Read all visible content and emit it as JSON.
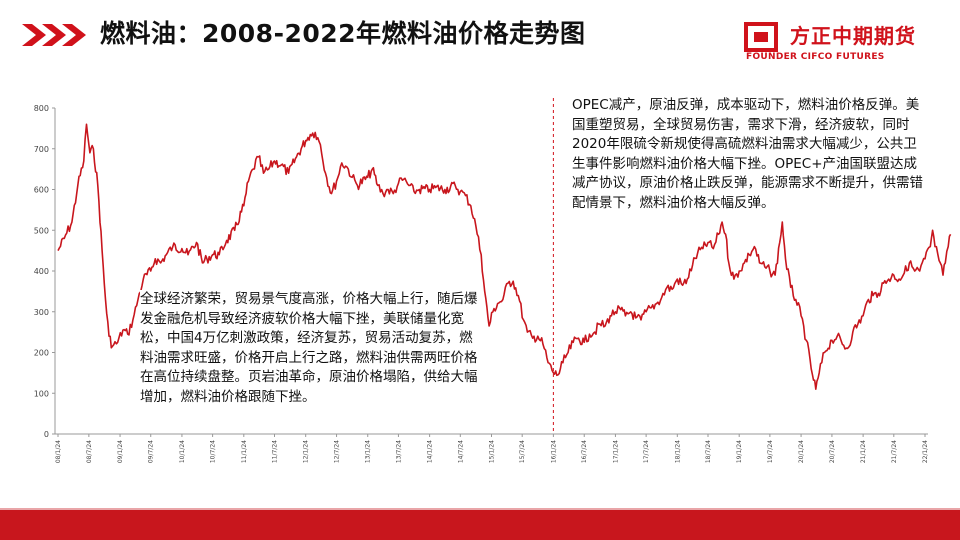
{
  "slide": {
    "title": "燃料油：2008-2022年燃料油价格走势图",
    "brand_cn": "方正中期期货",
    "brand_en": "FOUNDER CIFCO FUTURES",
    "accent_color": "#d0121b",
    "icons": [
      "chevron-right-icon",
      "chevron-right-icon",
      "chevron-right-icon",
      "founder-logo-icon"
    ]
  },
  "annotations": {
    "left": "全球经济繁荣，贸易景气度高涨，价格大幅上行，随后爆发金融危机导致经济疲软价格大幅下挫，美联储量化宽松，中国4万亿刺激政策，经济复苏，贸易活动复苏，燃料油需求旺盛，价格开启上行之路，燃料油供需两旺价格在高位持续盘整。页岩油革命，原油价格塌陷，供给大幅增加，燃料油价格跟随下挫。",
    "right": "OPEC减产，原油反弹，成本驱动下，燃料油价格反弹。美国重塑贸易，全球贸易伤害，需求下滑，经济疲软，同时2020年限硫令新规使得高硫燃料油需求大幅减少，公共卫生事件影响燃料油价格大幅下挫。OPEC+产油国联盟达成减产协议，原油价格止跌反弹，能源需求不断提升，供需错配情景下，燃料油价格大幅反弹。"
  },
  "chart_data": {
    "type": "line",
    "title": "",
    "xlabel": "",
    "ylabel": "",
    "ylim": [
      0,
      800
    ],
    "yticks": [
      "0",
      "100",
      "200",
      "300",
      "400",
      "500",
      "600",
      "700",
      "800"
    ],
    "xticks": [
      "08/1/24",
      "08/7/24",
      "09/1/24",
      "09/7/24",
      "10/1/24",
      "10/7/24",
      "11/1/24",
      "11/7/24",
      "12/1/24",
      "12/7/24",
      "13/1/24",
      "13/7/24",
      "14/1/24",
      "14/7/24",
      "15/1/24",
      "15/7/24",
      "16/1/24",
      "16/7/24",
      "17/1/24",
      "17/7/24",
      "18/1/24",
      "18/7/24",
      "19/1/24",
      "19/7/24",
      "20/1/24",
      "20/7/24",
      "21/1/24",
      "21/7/24",
      "22/1/24"
    ],
    "grid": false,
    "legend": "none",
    "line_color": "#c8161d",
    "divider_date": "2016-01-24",
    "series": [
      {
        "values": [
          [
            "2008-01-24",
            450
          ],
          [
            "2008-03-01",
            480
          ],
          [
            "2008-04-15",
            520
          ],
          [
            "2008-05-20",
            610
          ],
          [
            "2008-06-24",
            670
          ],
          [
            "2008-07-10",
            760
          ],
          [
            "2008-07-30",
            690
          ],
          [
            "2008-08-20",
            700
          ],
          [
            "2008-09-15",
            610
          ],
          [
            "2008-10-10",
            450
          ],
          [
            "2008-10-30",
            330
          ],
          [
            "2008-11-20",
            240
          ],
          [
            "2008-12-10",
            215
          ],
          [
            "2009-01-10",
            225
          ],
          [
            "2009-02-10",
            255
          ],
          [
            "2009-03-10",
            245
          ],
          [
            "2009-04-10",
            280
          ],
          [
            "2009-05-10",
            330
          ],
          [
            "2009-06-10",
            380
          ],
          [
            "2009-07-24",
            400
          ],
          [
            "2009-08-20",
            430
          ],
          [
            "2009-09-20",
            420
          ],
          [
            "2009-10-24",
            440
          ],
          [
            "2009-12-01",
            460
          ],
          [
            "2010-01-24",
            455
          ],
          [
            "2010-03-01",
            440
          ],
          [
            "2010-04-20",
            470
          ],
          [
            "2010-05-25",
            420
          ],
          [
            "2010-06-20",
            430
          ],
          [
            "2010-07-24",
            440
          ],
          [
            "2010-09-01",
            440
          ],
          [
            "2010-10-15",
            475
          ],
          [
            "2010-12-01",
            500
          ],
          [
            "2011-01-24",
            560
          ],
          [
            "2011-02-20",
            620
          ],
          [
            "2011-03-20",
            650
          ],
          [
            "2011-04-20",
            680
          ],
          [
            "2011-05-20",
            640
          ],
          [
            "2011-06-20",
            650
          ],
          [
            "2011-07-24",
            670
          ],
          [
            "2011-09-01",
            660
          ],
          [
            "2011-10-15",
            640
          ],
          [
            "2011-12-01",
            680
          ],
          [
            "2012-01-24",
            720
          ],
          [
            "2012-02-20",
            735
          ],
          [
            "2012-03-20",
            740
          ],
          [
            "2012-04-20",
            710
          ],
          [
            "2012-05-20",
            640
          ],
          [
            "2012-06-24",
            590
          ],
          [
            "2012-07-24",
            620
          ],
          [
            "2012-08-24",
            665
          ],
          [
            "2012-09-24",
            655
          ],
          [
            "2012-10-24",
            630
          ],
          [
            "2012-11-24",
            610
          ],
          [
            "2013-01-24",
            630
          ],
          [
            "2013-02-20",
            650
          ],
          [
            "2013-03-24",
            610
          ],
          [
            "2013-04-24",
            590
          ],
          [
            "2013-05-24",
            600
          ],
          [
            "2013-06-24",
            590
          ],
          [
            "2013-07-24",
            615
          ],
          [
            "2013-08-24",
            625
          ],
          [
            "2013-09-24",
            610
          ],
          [
            "2013-10-24",
            595
          ],
          [
            "2013-11-24",
            600
          ],
          [
            "2014-01-24",
            600
          ],
          [
            "2014-03-01",
            605
          ],
          [
            "2014-04-24",
            600
          ],
          [
            "2014-06-24",
            610
          ],
          [
            "2014-07-24",
            595
          ],
          [
            "2014-08-24",
            585
          ],
          [
            "2014-09-24",
            560
          ],
          [
            "2014-10-24",
            510
          ],
          [
            "2014-11-24",
            440
          ],
          [
            "2014-12-15",
            350
          ],
          [
            "2015-01-10",
            265
          ],
          [
            "2015-02-01",
            300
          ],
          [
            "2015-03-01",
            320
          ],
          [
            "2015-04-01",
            330
          ],
          [
            "2015-05-01",
            370
          ],
          [
            "2015-06-01",
            375
          ],
          [
            "2015-07-01",
            340
          ],
          [
            "2015-08-01",
            280
          ],
          [
            "2015-08-24",
            250
          ],
          [
            "2015-09-24",
            235
          ],
          [
            "2015-10-24",
            240
          ],
          [
            "2015-11-24",
            220
          ],
          [
            "2015-12-24",
            175
          ],
          [
            "2016-01-24",
            150
          ],
          [
            "2016-02-20",
            145
          ],
          [
            "2016-03-20",
            175
          ],
          [
            "2016-04-20",
            200
          ],
          [
            "2016-05-20",
            225
          ],
          [
            "2016-06-20",
            235
          ],
          [
            "2016-07-24",
            225
          ],
          [
            "2016-08-24",
            245
          ],
          [
            "2016-09-24",
            250
          ],
          [
            "2016-10-24",
            270
          ],
          [
            "2016-11-24",
            265
          ],
          [
            "2016-12-24",
            290
          ],
          [
            "2017-01-24",
            300
          ],
          [
            "2017-02-24",
            305
          ],
          [
            "2017-03-24",
            290
          ],
          [
            "2017-04-24",
            300
          ],
          [
            "2017-05-24",
            285
          ],
          [
            "2017-06-24",
            280
          ],
          [
            "2017-07-24",
            300
          ],
          [
            "2017-08-24",
            310
          ],
          [
            "2017-09-24",
            320
          ],
          [
            "2017-10-24",
            335
          ],
          [
            "2017-11-24",
            360
          ],
          [
            "2017-12-24",
            355
          ],
          [
            "2018-01-24",
            380
          ],
          [
            "2018-02-24",
            365
          ],
          [
            "2018-03-24",
            380
          ],
          [
            "2018-04-24",
            415
          ],
          [
            "2018-05-24",
            445
          ],
          [
            "2018-06-24",
            455
          ],
          [
            "2018-07-24",
            470
          ],
          [
            "2018-08-24",
            455
          ],
          [
            "2018-09-24",
            490
          ],
          [
            "2018-10-15",
            520
          ],
          [
            "2018-11-05",
            490
          ],
          [
            "2018-11-24",
            420
          ],
          [
            "2018-12-24",
            380
          ],
          [
            "2019-01-24",
            400
          ],
          [
            "2019-02-24",
            420
          ],
          [
            "2019-03-24",
            440
          ],
          [
            "2019-04-24",
            460
          ],
          [
            "2019-05-24",
            420
          ],
          [
            "2019-06-24",
            410
          ],
          [
            "2019-07-24",
            400
          ],
          [
            "2019-08-24",
            390
          ],
          [
            "2019-09-20",
            470
          ],
          [
            "2019-10-05",
            520
          ],
          [
            "2019-10-24",
            430
          ],
          [
            "2019-11-24",
            360
          ],
          [
            "2019-12-24",
            330
          ],
          [
            "2020-01-24",
            290
          ],
          [
            "2020-02-24",
            230
          ],
          [
            "2020-03-24",
            160
          ],
          [
            "2020-04-20",
            110
          ],
          [
            "2020-05-10",
            150
          ],
          [
            "2020-06-10",
            200
          ],
          [
            "2020-07-24",
            230
          ],
          [
            "2020-08-24",
            240
          ],
          [
            "2020-09-24",
            220
          ],
          [
            "2020-10-24",
            210
          ],
          [
            "2020-11-24",
            250
          ],
          [
            "2020-12-24",
            270
          ],
          [
            "2021-01-24",
            290
          ],
          [
            "2021-02-24",
            330
          ],
          [
            "2021-03-24",
            340
          ],
          [
            "2021-04-24",
            345
          ],
          [
            "2021-05-24",
            370
          ],
          [
            "2021-06-24",
            380
          ],
          [
            "2021-07-24",
            390
          ],
          [
            "2021-08-24",
            380
          ],
          [
            "2021-09-24",
            395
          ],
          [
            "2021-10-24",
            420
          ],
          [
            "2021-11-24",
            400
          ],
          [
            "2021-12-24",
            400
          ],
          [
            "2022-01-24",
            430
          ],
          [
            "2022-02-24",
            460
          ],
          [
            "2022-03-10",
            500
          ],
          [
            "2022-03-24",
            460
          ],
          [
            "2022-04-10",
            440
          ],
          [
            "2022-04-24",
            420
          ],
          [
            "2022-05-10",
            390
          ],
          [
            "2022-05-24",
            420
          ],
          [
            "2022-06-10",
            460
          ],
          [
            "2022-06-24",
            490
          ]
        ]
      }
    ]
  }
}
